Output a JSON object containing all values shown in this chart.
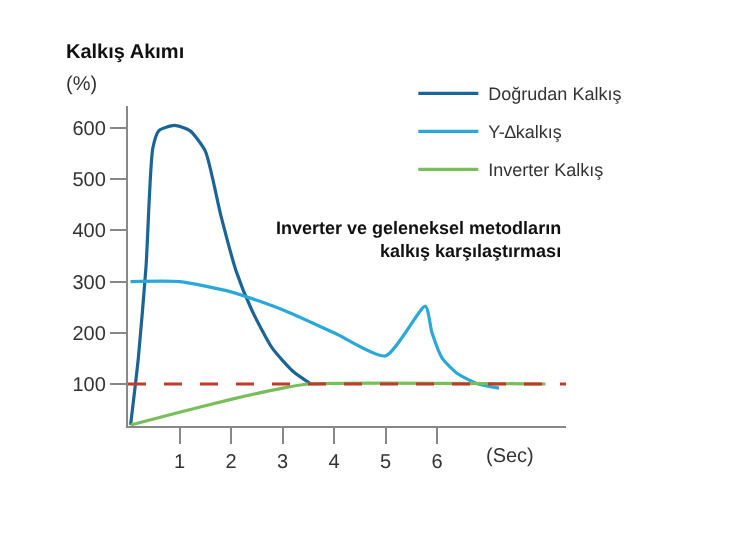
{
  "chart_data": {
    "type": "line",
    "title": "Kalkış Akımı",
    "ylabel": "(%)",
    "xlabel": "(Sec)",
    "annotations": [
      "Inverter ve geleneksel metodların\nkalkış karşılaştırması"
    ],
    "series": [
      {
        "name": "Doğrudan Kalkış",
        "color": "#1a6496",
        "x": [
          0.05,
          0.2,
          0.35,
          0.48,
          0.6,
          0.9,
          1.2,
          1.5,
          1.8,
          2.1,
          2.4,
          2.8,
          3.2,
          3.55
        ],
        "values": [
          20,
          150,
          330,
          560,
          595,
          605,
          595,
          555,
          430,
          320,
          245,
          170,
          125,
          100
        ]
      },
      {
        "name": "Y-∆kalkış",
        "color": "#2aa8d8",
        "x": [
          0.05,
          1,
          2,
          3,
          4,
          5,
          5.77,
          5.9,
          6.1,
          6.4,
          6.8,
          7.2
        ],
        "values": [
          300,
          300,
          280,
          245,
          200,
          155,
          252,
          200,
          150,
          120,
          100,
          92
        ]
      },
      {
        "name": "Inverter Kalkış",
        "color": "#78be5a",
        "x": [
          0.05,
          1,
          2,
          3,
          3.5,
          8.1
        ],
        "values": [
          20,
          45,
          70,
          92,
          100,
          100
        ]
      }
    ],
    "ref_lines": [
      {
        "axis": "y",
        "value": 100,
        "color": "#c0392b",
        "line_style": "dashed"
      }
    ],
    "xlim": [
      0,
      8.5
    ],
    "ylim": [
      18,
      643
    ],
    "xticks": [
      1,
      2,
      3,
      4,
      5,
      6
    ],
    "yticks": [
      100,
      200,
      300,
      400,
      500,
      600
    ],
    "legend": "top right",
    "marker": "none",
    "line_style": "solid"
  }
}
